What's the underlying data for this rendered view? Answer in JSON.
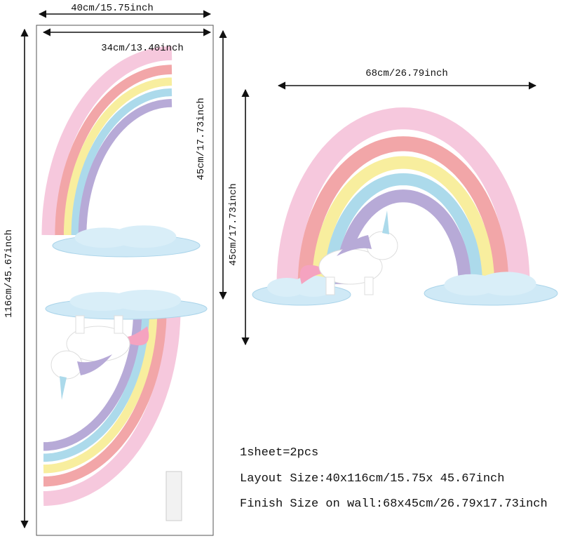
{
  "dimensions": {
    "sheet_width": "40cm/15.75inch",
    "sheet_inner_width": "34cm/13.40inch",
    "sheet_piece_height": "45cm/17.73inch",
    "sheet_height": "116cm/45.67inch",
    "wall_width": "68cm/26.79inch",
    "wall_height": "45cm/17.73inch"
  },
  "specs": [
    "1sheet=2pcs",
    "Layout Size:40x116cm/15.75x 45.67inch",
    "Finish Size on wall:68x45cm/26.79x17.73inch"
  ]
}
